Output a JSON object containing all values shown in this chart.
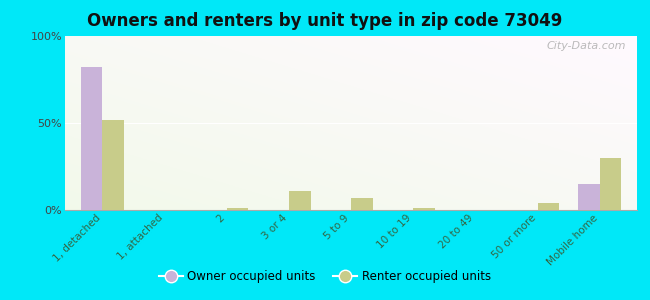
{
  "title": "Owners and renters by unit type in zip code 73049",
  "categories": [
    "1, detached",
    "1, attached",
    "2",
    "3 or 4",
    "5 to 9",
    "10 to 19",
    "20 to 49",
    "50 or more",
    "Mobile home"
  ],
  "owner_values": [
    82,
    0,
    0,
    0,
    0,
    0,
    0,
    0,
    15
  ],
  "renter_values": [
    52,
    0,
    1,
    11,
    7,
    1,
    0,
    4,
    30
  ],
  "owner_color": "#c9b3d9",
  "renter_color": "#c8cc8a",
  "bg_outer": "#00e8f8",
  "ylim": [
    0,
    100
  ],
  "yticks": [
    0,
    50,
    100
  ],
  "ytick_labels": [
    "0%",
    "50%",
    "100%"
  ],
  "bar_width": 0.35,
  "legend_owner": "Owner occupied units",
  "legend_renter": "Renter occupied units",
  "watermark": "City-Data.com"
}
